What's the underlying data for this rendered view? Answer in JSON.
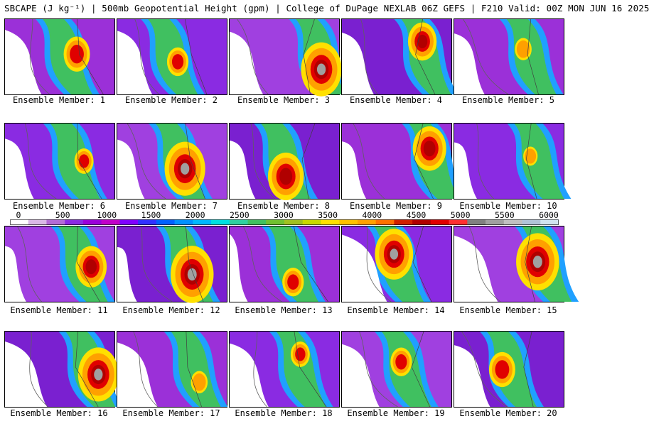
{
  "header": {
    "title": "SBCAPE (J kg⁻¹) | 500mb Geopotential Height (gpm) | College of DuPage NEXLAB 06Z GEFS | F210 Valid: 00Z MON JUN 16 2025"
  },
  "panels": [
    {
      "label": "Ensemble Member: 1",
      "hot": 0.55
    },
    {
      "label": "Ensemble Member: 2",
      "hot": 0.45
    },
    {
      "label": "Ensemble Member: 3",
      "hot": 0.85
    },
    {
      "label": "Ensemble Member: 4",
      "hot": 0.6
    },
    {
      "label": "Ensemble Member: 5",
      "hot": 0.35
    },
    {
      "label": "Ensemble Member: 6",
      "hot": 0.4
    },
    {
      "label": "Ensemble Member: 7",
      "hot": 0.85
    },
    {
      "label": "Ensemble Member: 8",
      "hot": 0.75
    },
    {
      "label": "Ensemble Member: 9",
      "hot": 0.7
    },
    {
      "label": "Ensemble Member: 10",
      "hot": 0.3
    },
    {
      "label": "Ensemble Member: 11",
      "hot": 0.65
    },
    {
      "label": "Ensemble Member: 12",
      "hot": 0.9
    },
    {
      "label": "Ensemble Member: 13",
      "hot": 0.45
    },
    {
      "label": "Ensemble Member: 14",
      "hot": 0.8
    },
    {
      "label": "Ensemble Member: 15",
      "hot": 0.9
    },
    {
      "label": "Ensemble Member: 16",
      "hot": 0.85
    },
    {
      "label": "Ensemble Member: 17",
      "hot": 0.35
    },
    {
      "label": "Ensemble Member: 18",
      "hot": 0.4
    },
    {
      "label": "Ensemble Member: 19",
      "hot": 0.45
    },
    {
      "label": "Ensemble Member: 20",
      "hot": 0.55
    }
  ],
  "colorbar": {
    "labels": [
      "0",
      "500",
      "1000",
      "1500",
      "2000",
      "2500",
      "3000",
      "3500",
      "4000",
      "4500",
      "5000",
      "5500",
      "6000"
    ],
    "colors": [
      "#ffffff",
      "#d9b8e6",
      "#b36bd6",
      "#8a2be2",
      "#9b00d9",
      "#c000c8",
      "#8000ff",
      "#3030ff",
      "#0060ff",
      "#0090ff",
      "#00b8ff",
      "#00e0e0",
      "#30d0a0",
      "#40c060",
      "#70c030",
      "#a0c020",
      "#c8d800",
      "#ffe000",
      "#ffc000",
      "#ffa000",
      "#ff7000",
      "#d02000",
      "#b00000",
      "#e00000",
      "#ff3030",
      "#808080",
      "#a0a0a0",
      "#c0c0c0",
      "#b0c4d8",
      "#d0e4f0"
    ],
    "units": "J kg⁻¹"
  }
}
